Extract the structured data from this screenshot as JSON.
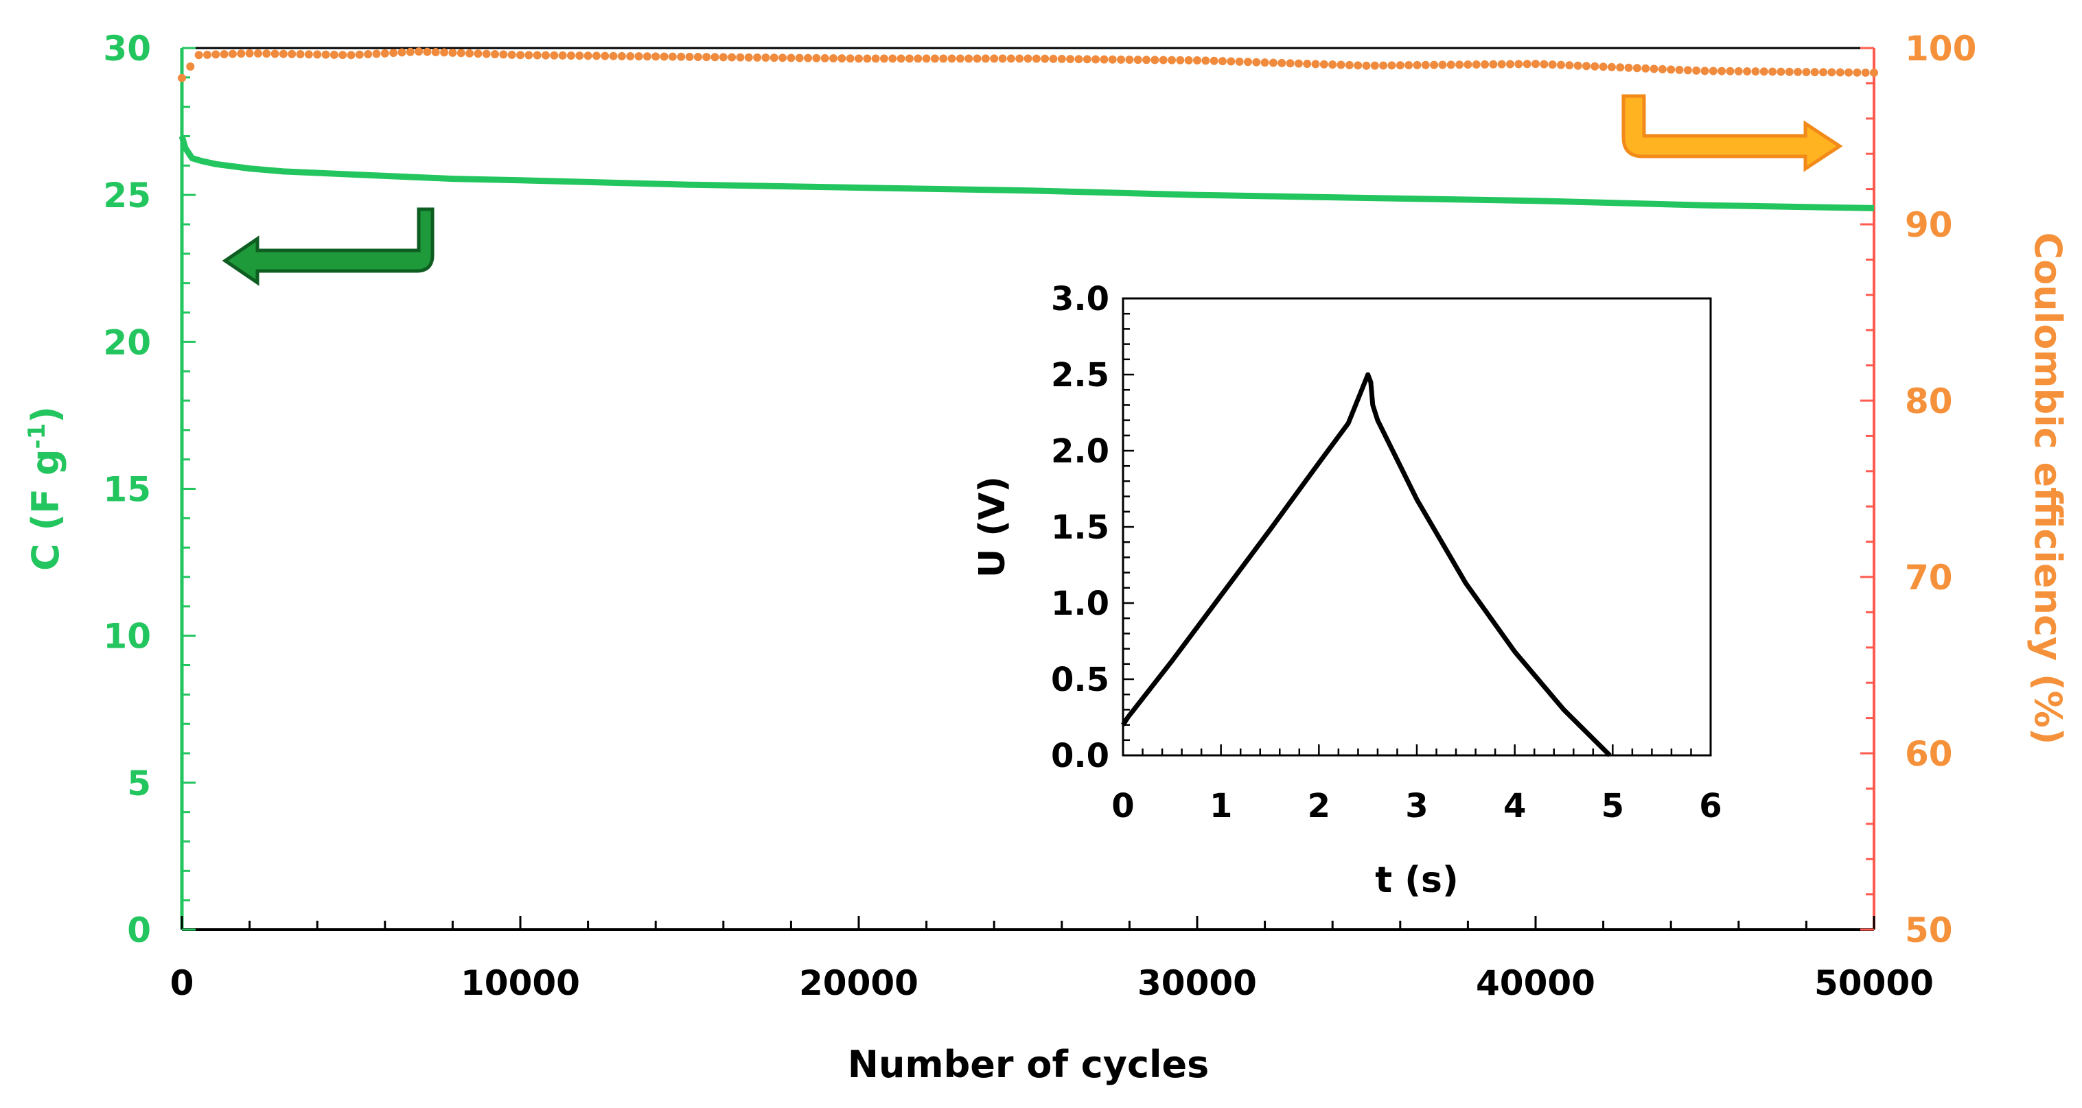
{
  "colors": {
    "capacitance": "#22c55e",
    "efficiency_markers": "#f08a3c",
    "efficiency_axis_line": "#ff5a4f",
    "efficiency_axis_text": "#f5913a",
    "inset": "#000000",
    "arrow_left_fill": "#1f9a3a",
    "arrow_right_fill": "#ffb321"
  },
  "chart_data": [
    {
      "type": "line",
      "xlabel": "Number of cycles",
      "ylabel": "C (F g",
      "ylabel_superscript": "-1",
      "ylabel_close": ")",
      "y2label": "Coulombic efficiency (%)",
      "xlim": [
        0,
        50000
      ],
      "ylim": [
        0,
        30
      ],
      "y2lim": [
        50,
        100
      ],
      "x_ticks": [
        "0",
        "10000",
        "20000",
        "30000",
        "40000",
        "50000"
      ],
      "y_ticks": [
        "0",
        "5",
        "10",
        "15",
        "20",
        "25",
        "30"
      ],
      "y2_ticks": [
        "50",
        "60",
        "70",
        "80",
        "90",
        "100"
      ],
      "series": [
        {
          "axis": "left",
          "style": "line",
          "x": [
            0,
            100,
            300,
            600,
            1000,
            2000,
            3000,
            5000,
            8000,
            10000,
            15000,
            20000,
            25000,
            30000,
            35000,
            40000,
            45000,
            50000
          ],
          "values": [
            27.0,
            26.6,
            26.25,
            26.15,
            26.05,
            25.9,
            25.8,
            25.7,
            25.55,
            25.5,
            25.35,
            25.25,
            25.15,
            25.0,
            24.9,
            24.8,
            24.65,
            24.55
          ]
        },
        {
          "axis": "right",
          "style": "markers",
          "x": [
            0,
            500,
            2000,
            5000,
            7000,
            10000,
            15000,
            20000,
            25000,
            30000,
            35000,
            40000,
            45000,
            50000
          ],
          "values": [
            98.3,
            99.6,
            99.7,
            99.6,
            99.8,
            99.6,
            99.5,
            99.4,
            99.4,
            99.3,
            99.0,
            99.1,
            98.7,
            98.6
          ]
        }
      ]
    },
    {
      "type": "line",
      "xlabel": "t (s)",
      "ylabel": "U (V)",
      "xlim": [
        0,
        6
      ],
      "ylim": [
        0,
        3.0
      ],
      "x_ticks": [
        "0",
        "1",
        "2",
        "3",
        "4",
        "5",
        "6"
      ],
      "y_ticks": [
        "0.0",
        "0.5",
        "1.0",
        "1.5",
        "2.0",
        "2.5",
        "3.0"
      ],
      "series": [
        {
          "x": [
            0,
            0.05,
            0.5,
            1.0,
            1.5,
            2.0,
            2.3,
            2.5,
            2.53,
            2.55,
            2.6,
            3.0,
            3.5,
            4.0,
            4.5,
            4.97
          ],
          "values": [
            0.2,
            0.25,
            0.62,
            1.05,
            1.48,
            1.92,
            2.18,
            2.5,
            2.45,
            2.3,
            2.2,
            1.68,
            1.13,
            0.68,
            0.3,
            0.0
          ]
        }
      ]
    }
  ]
}
